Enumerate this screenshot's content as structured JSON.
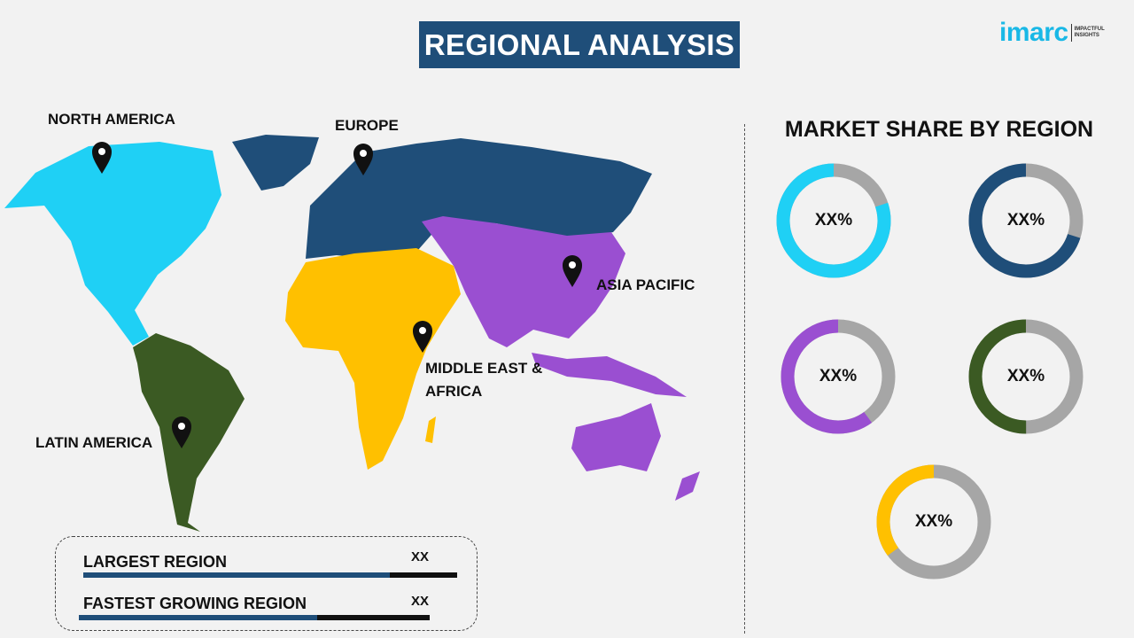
{
  "title": "REGIONAL ANALYSIS",
  "logo": {
    "name": "imarc",
    "tagline_1": "IMPACTFUL",
    "tagline_2": "INSIGHTS"
  },
  "map": {
    "regions": [
      {
        "label": "NORTH AMERICA",
        "color": "#1fd0f5"
      },
      {
        "label": "EUROPE",
        "color": "#1f4e79"
      },
      {
        "label": "ASIA PACIFIC",
        "color": "#9a4fd1"
      },
      {
        "label": "MIDDLE EAST &",
        "label_2": "AFRICA",
        "color": "#ffc000"
      },
      {
        "label": "LATIN AMERICA",
        "color": "#3b5a23"
      }
    ],
    "pin_icon": "map-pin-icon"
  },
  "share": {
    "title": "MARKET SHARE BY REGION",
    "remainder_color": "#a6a6a6",
    "donuts": [
      {
        "value_label": "XX%",
        "fraction": 0.8,
        "color": "#1fd0f5"
      },
      {
        "value_label": "XX%",
        "fraction": 0.7,
        "color": "#1f4e79"
      },
      {
        "value_label": "XX%",
        "fraction": 0.6,
        "color": "#9a4fd1"
      },
      {
        "value_label": "XX%",
        "fraction": 0.5,
        "color": "#3b5a23"
      },
      {
        "value_label": "XX%",
        "fraction": 0.35,
        "color": "#ffc000"
      }
    ]
  },
  "summary": [
    {
      "label": "LARGEST REGION",
      "value": "XX",
      "fill": 0.82
    },
    {
      "label": "FASTEST GROWING REGION",
      "value": "XX",
      "fill": 0.68
    }
  ]
}
